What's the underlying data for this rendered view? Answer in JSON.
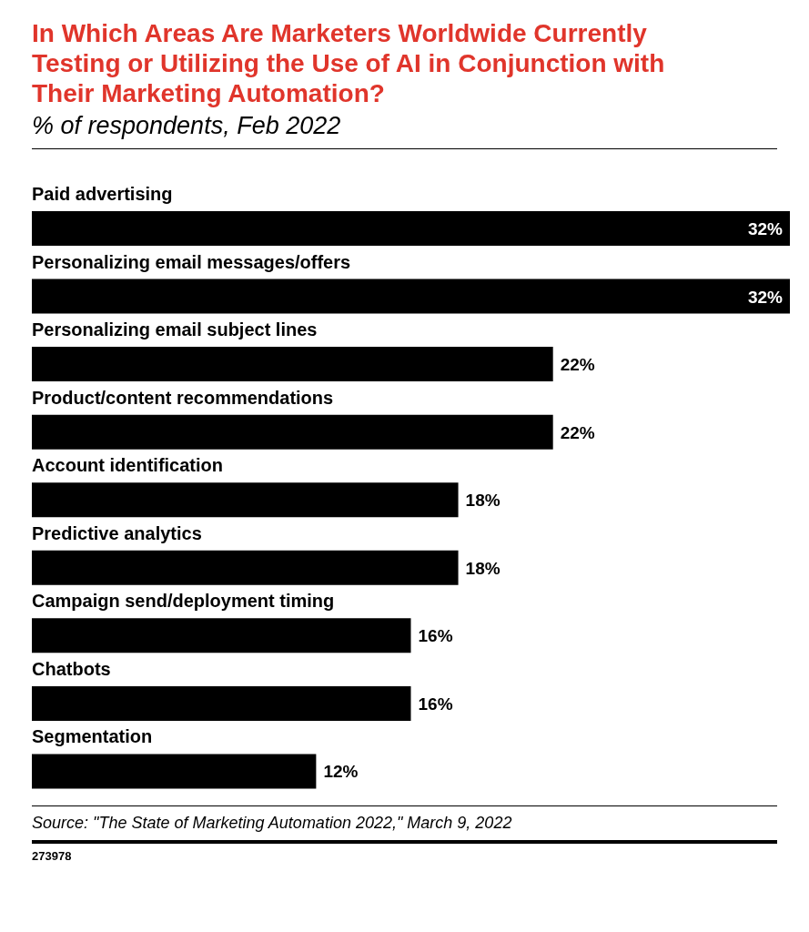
{
  "chart_data": {
    "type": "bar",
    "orientation": "horizontal",
    "title": "In Which Areas Are Marketers Worldwide Currently Testing or Utilizing the Use of AI in Conjunction with Their Marketing Automation?",
    "subtitle": "% of respondents, Feb 2022",
    "categories": [
      "Paid advertising",
      "Personalizing email messages/offers",
      "Personalizing email subject lines",
      "Product/content recommendations",
      "Account identification",
      "Predictive analytics",
      "Campaign send/deployment timing",
      "Chatbots",
      "Segmentation"
    ],
    "values": [
      32,
      32,
      22,
      22,
      18,
      18,
      16,
      16,
      12
    ],
    "value_labels": [
      "32%",
      "32%",
      "22%",
      "22%",
      "18%",
      "18%",
      "16%",
      "16%",
      "12%"
    ],
    "color": "#000000",
    "annotations": [
      "Source: \"The State of Marketing Automation 2022,\" March 9, 2022",
      "273978"
    ]
  }
}
